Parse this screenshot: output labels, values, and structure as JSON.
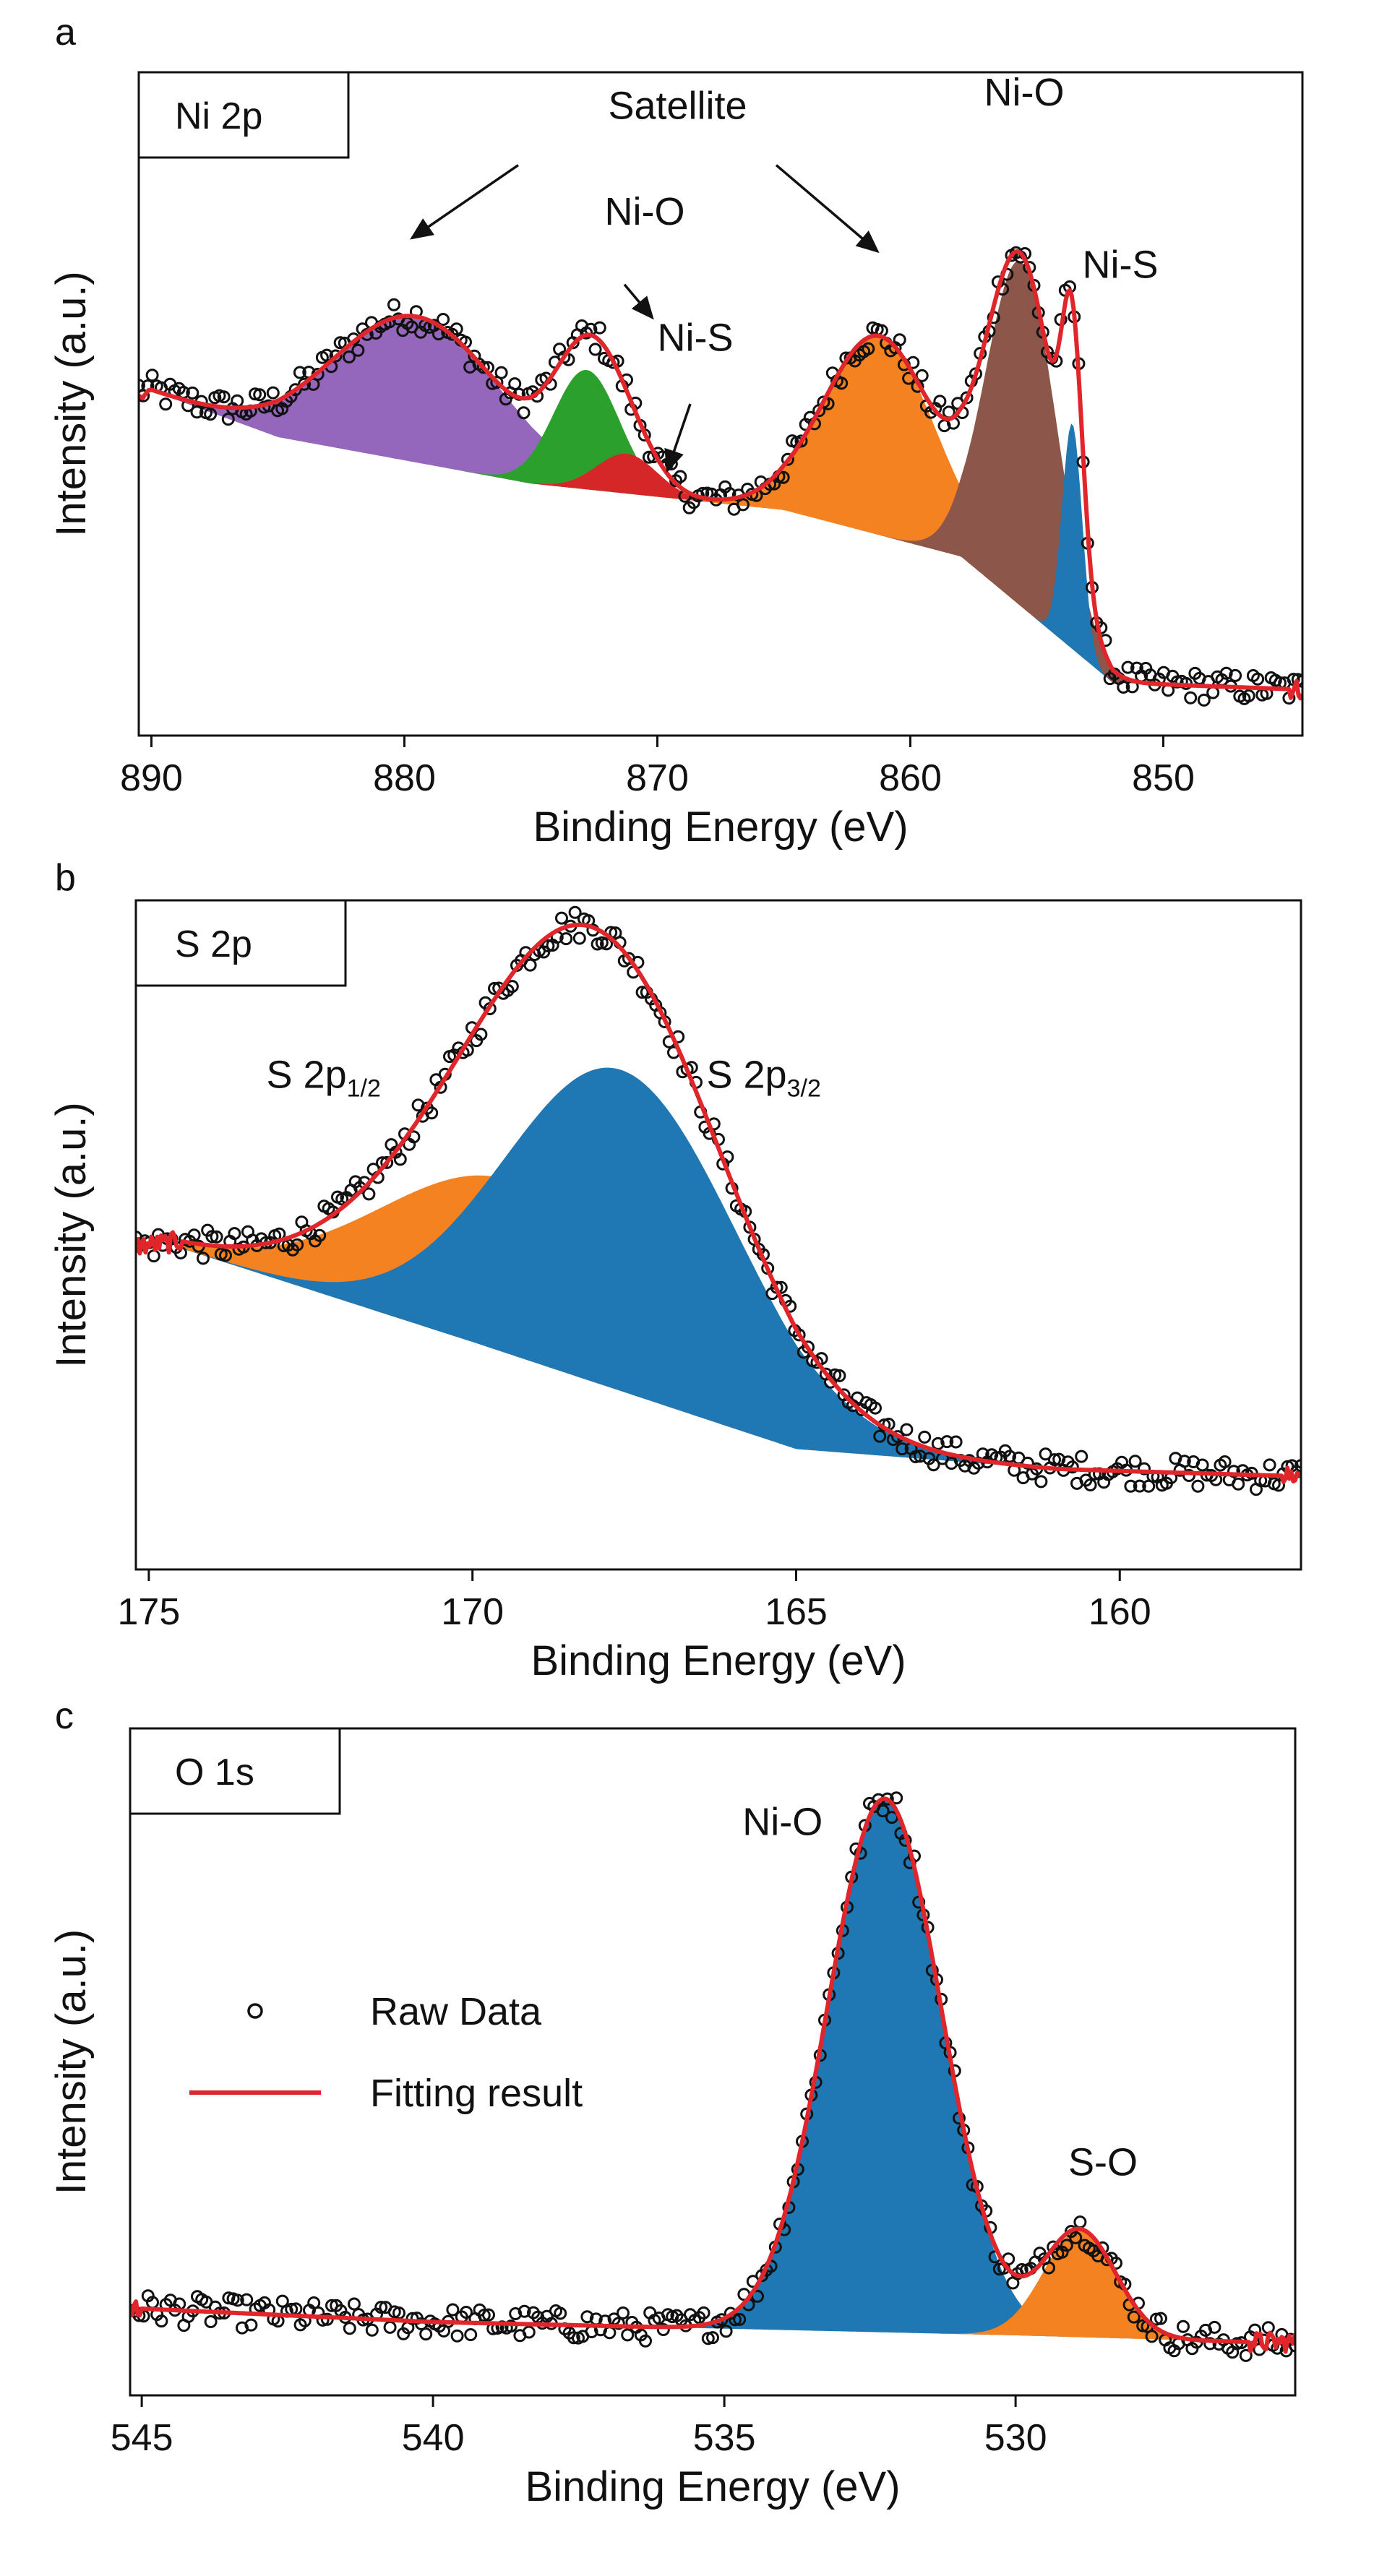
{
  "colors": {
    "fit_line": "#e0262b",
    "raw_marker": "#111111",
    "blue": "#1f77b4",
    "orange": "#f58220",
    "green": "#2ca02c",
    "red": "#d62728",
    "purple": "#9467bd",
    "brown": "#8c564b"
  },
  "legend": {
    "raw_data": "Raw Data",
    "fitting_result": "Fitting result"
  },
  "chart_data": [
    {
      "panel": "a",
      "type": "line",
      "tag": "Ni 2p",
      "xlabel": "Binding Energy (eV)",
      "ylabel": "Intensity (a.u.)",
      "xlim": [
        890.5,
        844.5
      ],
      "ylim": [
        0,
        100
      ],
      "xticks": [
        890,
        880,
        870,
        860,
        850
      ],
      "background": {
        "x": [
          890,
          885,
          875,
          865,
          858,
          852,
          845
        ],
        "y": [
          52,
          45,
          38,
          34,
          27,
          8,
          7
        ]
      },
      "components": [
        {
          "name": "Satellite",
          "color": "purple",
          "center": 879.5,
          "sigma": 3.3,
          "height": 22
        },
        {
          "name": "Ni-O",
          "color": "green",
          "center": 872.8,
          "sigma": 1.3,
          "height": 18
        },
        {
          "name": "Ni-S",
          "color": "red",
          "center": 871.2,
          "sigma": 1.2,
          "height": 6
        },
        {
          "name": "Satellite",
          "color": "orange",
          "center": 861.2,
          "sigma": 2.2,
          "height": 30
        },
        {
          "name": "Ni-O",
          "color": "brown",
          "center": 855.6,
          "sigma": 1.4,
          "height": 52
        },
        {
          "name": "Ni-S",
          "color": "blue",
          "center": 853.6,
          "sigma": 0.4,
          "height": 34
        }
      ],
      "annotations": [
        {
          "text": "Satellite",
          "x": 869.2,
          "y": 93
        },
        {
          "text": "Ni-O",
          "x": 870.5,
          "y": 77
        },
        {
          "text": "Ni-S",
          "x": 868.5,
          "y": 58
        },
        {
          "text": "Ni-O",
          "x": 855.5,
          "y": 95
        },
        {
          "text": "Ni-S",
          "x": 851.7,
          "y": 69
        }
      ],
      "arrows": [
        {
          "from": [
            875.5,
            86
          ],
          "to": [
            879.7,
            75
          ]
        },
        {
          "from": [
            865.3,
            86
          ],
          "to": [
            861.3,
            73
          ]
        },
        {
          "from": [
            871.3,
            68
          ],
          "to": [
            870.2,
            63
          ]
        },
        {
          "from": [
            868.7,
            50
          ],
          "to": [
            869.6,
            40
          ]
        }
      ]
    },
    {
      "panel": "b",
      "type": "line",
      "tag": "S 2p",
      "xlabel": "Binding Energy (eV)",
      "ylabel": "Intensity (a.u.)",
      "xlim": [
        175.2,
        157.2
      ],
      "ylim": [
        0,
        100
      ],
      "xticks": [
        175,
        170,
        165,
        160
      ],
      "background": {
        "x": [
          174.5,
          170,
          165,
          161,
          157.5
        ],
        "y": [
          48,
          34,
          18,
          15,
          14
        ]
      },
      "components": [
        {
          "name": "S 2p1/2",
          "color": "orange",
          "center": 169.4,
          "sigma": 2.0,
          "height": 26
        },
        {
          "name": "S 2p3/2",
          "color": "blue",
          "center": 167.7,
          "sigma": 1.8,
          "height": 48
        }
      ],
      "annotations": [
        {
          "text": "S 2p",
          "sub": "1/2",
          "x": 172.3,
          "y": 72
        },
        {
          "text": "S 2p",
          "sub": "3/2",
          "x": 165.5,
          "y": 72
        }
      ]
    },
    {
      "panel": "c",
      "type": "line",
      "tag": "O 1s",
      "xlabel": "Binding Energy (eV)",
      "ylabel": "Intensity (a.u.)",
      "xlim": [
        545.2,
        525.2
      ],
      "ylim": [
        0,
        100
      ],
      "xticks": [
        545,
        540,
        535,
        530
      ],
      "background": {
        "x": [
          545,
          540,
          535,
          530,
          526
        ],
        "y": [
          13,
          11,
          10,
          9,
          8
        ]
      },
      "components": [
        {
          "name": "Ni-O",
          "color": "blue",
          "center": 532.25,
          "sigma": 0.98,
          "height": 80
        },
        {
          "name": "S-O",
          "color": "orange",
          "center": 528.9,
          "sigma": 0.62,
          "height": 16
        }
      ],
      "annotations": [
        {
          "text": "Ni-O",
          "x": 534.0,
          "y": 84
        },
        {
          "text": "S-O",
          "x": 528.5,
          "y": 33
        }
      ]
    }
  ]
}
